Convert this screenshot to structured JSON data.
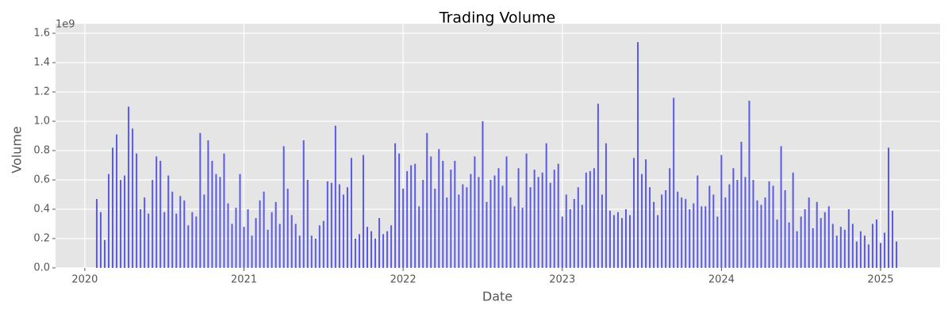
{
  "chart_data": {
    "type": "bar",
    "title": "Trading Volume",
    "x_label": "Date",
    "y_label": "Volume",
    "y_offset_label": "1e9",
    "color": "#5a5ae6",
    "grid": true,
    "xlim": [
      2019.816,
      2025.374
    ],
    "xticks": [
      2020,
      2021,
      2022,
      2023,
      2024,
      2025
    ],
    "ylim": [
      0,
      1.665
    ],
    "yticks": [
      {
        "value": 0,
        "label": "0.0"
      },
      0.2,
      0.4,
      0.6,
      0.8,
      {
        "value": 1,
        "label": "1.0"
      },
      1.2,
      1.4,
      1.6
    ],
    "x": [
      2020.075,
      2020.1,
      2020.125,
      2020.15,
      2020.175,
      2020.2,
      2020.225,
      2020.25,
      2020.275,
      2020.3,
      2020.325,
      2020.35,
      2020.375,
      2020.4,
      2020.425,
      2020.45,
      2020.475,
      2020.5,
      2020.525,
      2020.55,
      2020.575,
      2020.6,
      2020.625,
      2020.65,
      2020.675,
      2020.7,
      2020.725,
      2020.75,
      2020.775,
      2020.8,
      2020.825,
      2020.85,
      2020.875,
      2020.9,
      2020.925,
      2020.95,
      2020.975,
      2021,
      2021.025,
      2021.05,
      2021.075,
      2021.1,
      2021.125,
      2021.15,
      2021.175,
      2021.2,
      2021.225,
      2021.25,
      2021.275,
      2021.3,
      2021.325,
      2021.35,
      2021.375,
      2021.4,
      2021.425,
      2021.45,
      2021.475,
      2021.5,
      2021.525,
      2021.55,
      2021.575,
      2021.6,
      2021.625,
      2021.65,
      2021.675,
      2021.7,
      2021.725,
      2021.75,
      2021.775,
      2021.8,
      2021.825,
      2021.85,
      2021.875,
      2021.9,
      2021.925,
      2021.95,
      2021.975,
      2022,
      2022.025,
      2022.05,
      2022.075,
      2022.1,
      2022.125,
      2022.15,
      2022.175,
      2022.2,
      2022.225,
      2022.25,
      2022.275,
      2022.3,
      2022.325,
      2022.35,
      2022.375,
      2022.4,
      2022.425,
      2022.45,
      2022.475,
      2022.5,
      2022.525,
      2022.55,
      2022.575,
      2022.6,
      2022.625,
      2022.65,
      2022.675,
      2022.7,
      2022.725,
      2022.75,
      2022.775,
      2022.8,
      2022.825,
      2022.85,
      2022.875,
      2022.9,
      2022.925,
      2022.95,
      2022.975,
      2023,
      2023.025,
      2023.05,
      2023.075,
      2023.1,
      2023.125,
      2023.15,
      2023.175,
      2023.2,
      2023.225,
      2023.25,
      2023.275,
      2023.3,
      2023.325,
      2023.35,
      2023.375,
      2023.4,
      2023.425,
      2023.45,
      2023.475,
      2023.5,
      2023.525,
      2023.55,
      2023.575,
      2023.6,
      2023.625,
      2023.65,
      2023.675,
      2023.7,
      2023.725,
      2023.75,
      2023.775,
      2023.8,
      2023.825,
      2023.85,
      2023.875,
      2023.9,
      2023.925,
      2023.95,
      2023.975,
      2024,
      2024.025,
      2024.05,
      2024.075,
      2024.1,
      2024.125,
      2024.15,
      2024.175,
      2024.2,
      2024.225,
      2024.25,
      2024.275,
      2024.3,
      2024.325,
      2024.35,
      2024.375,
      2024.4,
      2024.425,
      2024.45,
      2024.475,
      2024.5,
      2024.525,
      2024.55,
      2024.575,
      2024.6,
      2024.625,
      2024.65,
      2024.675,
      2024.7,
      2024.725,
      2024.75,
      2024.775,
      2024.8,
      2024.825,
      2024.85,
      2024.875,
      2024.9,
      2024.925,
      2024.95,
      2024.975,
      2025,
      2025.025,
      2025.05,
      2025.075,
      2025.1
    ],
    "values": [
      0.47,
      0.38,
      0.19,
      0.64,
      0.82,
      0.91,
      0.6,
      0.63,
      1.1,
      0.95,
      0.78,
      0.4,
      0.48,
      0.37,
      0.6,
      0.76,
      0.73,
      0.38,
      0.63,
      0.52,
      0.37,
      0.49,
      0.46,
      0.29,
      0.38,
      0.35,
      0.92,
      0.5,
      0.87,
      0.73,
      0.64,
      0.62,
      0.78,
      0.44,
      0.3,
      0.41,
      0.64,
      0.28,
      0.4,
      0.22,
      0.34,
      0.46,
      0.52,
      0.26,
      0.38,
      0.45,
      0.3,
      0.83,
      0.54,
      0.36,
      0.3,
      0.22,
      0.87,
      0.6,
      0.22,
      0.2,
      0.29,
      0.32,
      0.59,
      0.58,
      0.97,
      0.57,
      0.5,
      0.55,
      0.75,
      0.2,
      0.23,
      0.77,
      0.28,
      0.25,
      0.2,
      0.34,
      0.23,
      0.25,
      0.29,
      0.85,
      0.78,
      0.54,
      0.66,
      0.7,
      0.71,
      0.42,
      0.6,
      0.92,
      0.76,
      0.54,
      0.81,
      0.73,
      0.48,
      0.67,
      0.73,
      0.5,
      0.57,
      0.55,
      0.64,
      0.76,
      0.62,
      1.0,
      0.45,
      0.6,
      0.63,
      0.68,
      0.56,
      0.76,
      0.48,
      0.42,
      0.68,
      0.41,
      0.78,
      0.55,
      0.67,
      0.62,
      0.65,
      0.85,
      0.58,
      0.67,
      0.71,
      0.35,
      0.5,
      0.4,
      0.47,
      0.55,
      0.43,
      0.65,
      0.66,
      0.68,
      1.12,
      0.5,
      0.85,
      0.39,
      0.36,
      0.38,
      0.34,
      0.4,
      0.36,
      0.75,
      1.54,
      0.64,
      0.74,
      0.55,
      0.45,
      0.36,
      0.5,
      0.53,
      0.68,
      1.16,
      0.52,
      0.48,
      0.47,
      0.4,
      0.44,
      0.63,
      0.42,
      0.42,
      0.56,
      0.5,
      0.35,
      0.77,
      0.48,
      0.57,
      0.68,
      0.6,
      0.86,
      0.62,
      1.14,
      0.6,
      0.46,
      0.43,
      0.48,
      0.59,
      0.56,
      0.33,
      0.83,
      0.53,
      0.31,
      0.65,
      0.25,
      0.35,
      0.4,
      0.48,
      0.27,
      0.45,
      0.34,
      0.38,
      0.42,
      0.3,
      0.22,
      0.28,
      0.26,
      0.4,
      0.3,
      0.18,
      0.25,
      0.22,
      0.16,
      0.3,
      0.33,
      0.17,
      0.24,
      0.82,
      0.39,
      0.18
    ]
  }
}
